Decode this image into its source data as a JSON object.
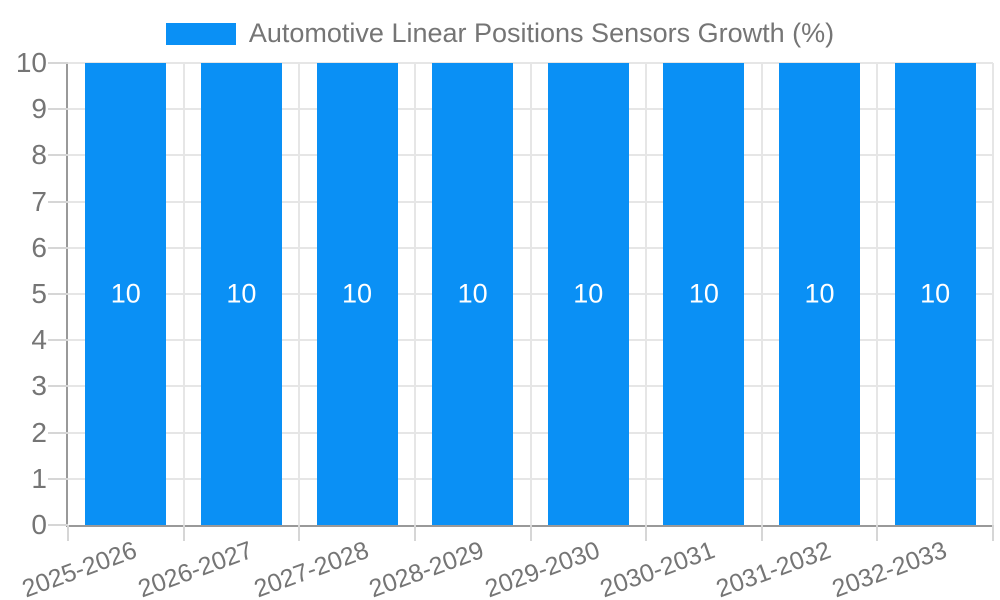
{
  "legend": {
    "label": "Automotive Linear Positions Sensors Growth (%)"
  },
  "colors": {
    "bar": "#0a90f5",
    "axis_text": "#757575",
    "bar_value_text": "#ffffff",
    "gridline": "#e6e6e6",
    "tick": "#d6d6d6",
    "axis_line": "#999999",
    "background": "#ffffff"
  },
  "chart_data": {
    "type": "bar",
    "title": "Automotive Linear Positions Sensors Growth (%)",
    "categories": [
      "2025-2026",
      "2026-2027",
      "2027-2028",
      "2028-2029",
      "2029-2030",
      "2030-2031",
      "2031-2032",
      "2032-2033"
    ],
    "series": [
      {
        "name": "Automotive Linear Positions Sensors Growth (%)",
        "values": [
          10,
          10,
          10,
          10,
          10,
          10,
          10,
          10
        ],
        "data_labels": [
          "10",
          "10",
          "10",
          "10",
          "10",
          "10",
          "10",
          "10"
        ],
        "color": "#0a90f5"
      }
    ],
    "xlabel": "",
    "ylabel": "",
    "ylim": [
      0,
      10
    ],
    "ytick_step": 1,
    "ytick_labels": [
      "0",
      "1",
      "2",
      "3",
      "4",
      "5",
      "6",
      "7",
      "8",
      "9",
      "10"
    ],
    "grid": true,
    "legend_position": "top",
    "bar_width_ratio": 0.7,
    "x_label_rotation_deg": -20
  }
}
